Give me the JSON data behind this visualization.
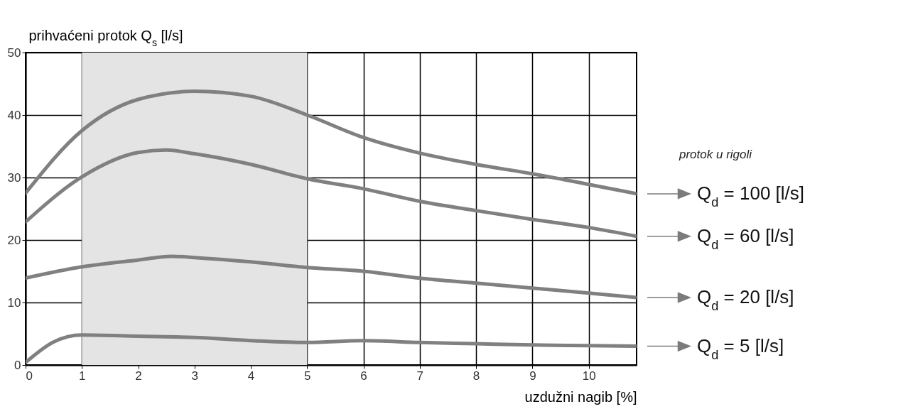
{
  "chart_data": {
    "type": "line",
    "xlabel": "uzdužni nagib [%]",
    "ylabel": "prihvaćeni protok Q$_{s}$ [l/s]",
    "annotations": [
      "protok u rigoli"
    ],
    "xlim": [
      0,
      10.85
    ],
    "xticks": [
      0,
      1,
      2,
      3,
      4,
      5,
      6,
      7,
      8,
      9,
      10
    ],
    "ylim": [
      0,
      50
    ],
    "yticks": [
      0,
      10,
      20,
      30,
      40,
      50
    ],
    "grid": true,
    "legend": "right",
    "bands": [
      {
        "axis": "x",
        "from": 1,
        "to": 5,
        "color": "#e4e4e4"
      }
    ],
    "series": [
      {
        "name": "Q$_{d}$ = 100 [l/s]",
        "color": "#808080",
        "x": [
          0,
          1,
          2,
          3,
          4,
          5,
          6,
          7,
          8,
          9,
          10,
          10.85
        ],
        "values": [
          27.5,
          37.5,
          42.5,
          43.8,
          43,
          40,
          36.4,
          33.9,
          32.1,
          30.6,
          28.9,
          27.4
        ]
      },
      {
        "name": "Q$_{d}$ = 60 [l/s]",
        "color": "#808080",
        "x": [
          0,
          1,
          2,
          2.5,
          3,
          4,
          5,
          6,
          7,
          8,
          9,
          10,
          10.85
        ],
        "values": [
          22.9,
          30.1,
          34,
          34.4,
          33.8,
          32.1,
          29.8,
          28.2,
          26.2,
          24.7,
          23.3,
          22,
          20.6
        ]
      },
      {
        "name": "Q$_{d}$ = 20 [l/s]",
        "color": "#808080",
        "x": [
          0,
          1,
          2,
          2.6,
          3,
          4,
          5,
          6,
          7,
          8,
          9,
          10,
          10.85
        ],
        "values": [
          13.9,
          15.7,
          16.8,
          17.4,
          17.2,
          16.5,
          15.6,
          15,
          13.9,
          13.1,
          12.3,
          11.5,
          10.8
        ]
      },
      {
        "name": "Q$_{d}$ = 5 [l/s]",
        "color": "#808080",
        "x": [
          0,
          0.5,
          1,
          2,
          3,
          4,
          5,
          6,
          7,
          8,
          9,
          10,
          10.85
        ],
        "values": [
          0.4,
          3.7,
          4.8,
          4.6,
          4.4,
          3.9,
          3.6,
          3.9,
          3.6,
          3.4,
          3.2,
          3.1,
          3.0
        ]
      }
    ]
  }
}
